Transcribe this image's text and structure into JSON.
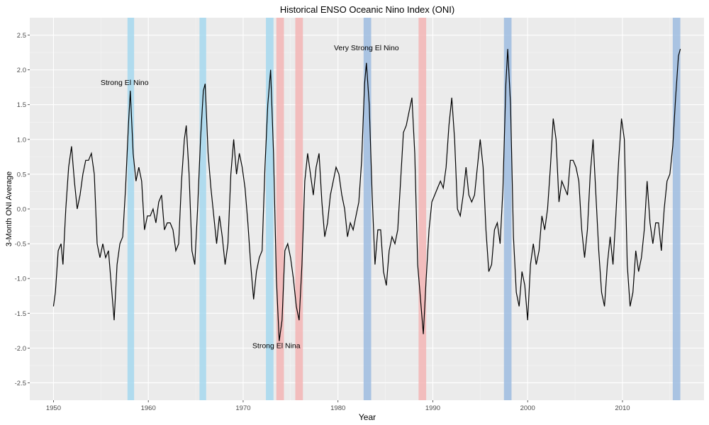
{
  "chart_data": {
    "type": "line",
    "title": "Historical ENSO Oceanic Nino Index (ONI)",
    "xlabel": "Year",
    "ylabel": "3-Month ONI Average",
    "xlim": [
      1947.5,
      2018.6
    ],
    "ylim": [
      -2.75,
      2.75
    ],
    "x_ticks": [
      1950,
      1960,
      1970,
      1980,
      1990,
      2000,
      2010
    ],
    "y_ticks": [
      2.5,
      2.0,
      1.5,
      1.0,
      0.5,
      0.0,
      -0.5,
      -1.0,
      -1.5,
      -2.0,
      -2.5
    ],
    "y_tick_labels": [
      "2.5",
      "2.0",
      "1.5",
      "1.0",
      "0.5",
      "0.0",
      "-0.5",
      "-1.0",
      "-1.5",
      "-2.0",
      "-2.5"
    ],
    "grid": true,
    "background": "#ebebeb",
    "line_color": "#000000",
    "bands": [
      {
        "x0": 1957.8,
        "x1": 1958.5,
        "color": "#a6d8ee"
      },
      {
        "x0": 1965.4,
        "x1": 1966.1,
        "color": "#a6d8ee"
      },
      {
        "x0": 1972.4,
        "x1": 1973.2,
        "color": "#a6d8ee"
      },
      {
        "x0": 1973.5,
        "x1": 1974.3,
        "color": "#f3b5b5"
      },
      {
        "x0": 1975.5,
        "x1": 1976.3,
        "color": "#f3b5b5"
      },
      {
        "x0": 1982.7,
        "x1": 1983.5,
        "color": "#9dbce0"
      },
      {
        "x0": 1988.5,
        "x1": 1989.3,
        "color": "#f3b5b5"
      },
      {
        "x0": 1997.5,
        "x1": 1998.3,
        "color": "#9dbce0"
      },
      {
        "x0": 2015.3,
        "x1": 2016.1,
        "color": "#9dbce0"
      }
    ],
    "annotations": [
      {
        "text": "Strong El Nino",
        "x": 1957.5,
        "y": 1.78
      },
      {
        "text": "Strong El Nina",
        "x": 1973.5,
        "y": -2.0
      },
      {
        "text": "Very Strong El Nino",
        "x": 1983.0,
        "y": 2.28
      }
    ],
    "points": [
      [
        1950.0,
        -1.4
      ],
      [
        1950.2,
        -1.2
      ],
      [
        1950.5,
        -0.6
      ],
      [
        1950.8,
        -0.5
      ],
      [
        1951.0,
        -0.8
      ],
      [
        1951.3,
        0.0
      ],
      [
        1951.6,
        0.6
      ],
      [
        1951.9,
        0.9
      ],
      [
        1952.2,
        0.4
      ],
      [
        1952.5,
        0.0
      ],
      [
        1952.8,
        0.2
      ],
      [
        1953.1,
        0.5
      ],
      [
        1953.4,
        0.7
      ],
      [
        1953.7,
        0.7
      ],
      [
        1954.0,
        0.8
      ],
      [
        1954.3,
        0.5
      ],
      [
        1954.6,
        -0.5
      ],
      [
        1954.9,
        -0.7
      ],
      [
        1955.2,
        -0.5
      ],
      [
        1955.5,
        -0.7
      ],
      [
        1955.8,
        -0.6
      ],
      [
        1956.1,
        -1.1
      ],
      [
        1956.4,
        -1.6
      ],
      [
        1956.7,
        -0.8
      ],
      [
        1957.0,
        -0.5
      ],
      [
        1957.3,
        -0.4
      ],
      [
        1957.6,
        0.3
      ],
      [
        1957.9,
        1.2
      ],
      [
        1958.1,
        1.7
      ],
      [
        1958.4,
        0.8
      ],
      [
        1958.7,
        0.4
      ],
      [
        1959.0,
        0.6
      ],
      [
        1959.3,
        0.4
      ],
      [
        1959.6,
        -0.3
      ],
      [
        1959.9,
        -0.1
      ],
      [
        1960.2,
        -0.1
      ],
      [
        1960.5,
        0.0
      ],
      [
        1960.8,
        -0.2
      ],
      [
        1961.1,
        0.1
      ],
      [
        1961.4,
        0.2
      ],
      [
        1961.7,
        -0.3
      ],
      [
        1962.0,
        -0.2
      ],
      [
        1962.3,
        -0.2
      ],
      [
        1962.6,
        -0.3
      ],
      [
        1962.9,
        -0.6
      ],
      [
        1963.2,
        -0.5
      ],
      [
        1963.5,
        0.4
      ],
      [
        1963.8,
        1.0
      ],
      [
        1964.0,
        1.2
      ],
      [
        1964.3,
        0.5
      ],
      [
        1964.6,
        -0.6
      ],
      [
        1964.9,
        -0.8
      ],
      [
        1965.2,
        0.0
      ],
      [
        1965.5,
        1.0
      ],
      [
        1965.8,
        1.7
      ],
      [
        1966.0,
        1.8
      ],
      [
        1966.3,
        0.8
      ],
      [
        1966.6,
        0.3
      ],
      [
        1966.9,
        -0.1
      ],
      [
        1967.2,
        -0.5
      ],
      [
        1967.5,
        -0.1
      ],
      [
        1967.8,
        -0.4
      ],
      [
        1968.1,
        -0.8
      ],
      [
        1968.4,
        -0.5
      ],
      [
        1968.7,
        0.5
      ],
      [
        1969.0,
        1.0
      ],
      [
        1969.3,
        0.5
      ],
      [
        1969.6,
        0.8
      ],
      [
        1969.9,
        0.6
      ],
      [
        1970.2,
        0.3
      ],
      [
        1970.5,
        -0.2
      ],
      [
        1970.8,
        -0.8
      ],
      [
        1971.1,
        -1.3
      ],
      [
        1971.4,
        -0.9
      ],
      [
        1971.7,
        -0.7
      ],
      [
        1972.0,
        -0.6
      ],
      [
        1972.3,
        0.6
      ],
      [
        1972.6,
        1.5
      ],
      [
        1972.9,
        2.0
      ],
      [
        1973.2,
        0.8
      ],
      [
        1973.5,
        -1.0
      ],
      [
        1973.8,
        -1.9
      ],
      [
        1974.1,
        -1.6
      ],
      [
        1974.4,
        -0.6
      ],
      [
        1974.7,
        -0.5
      ],
      [
        1975.0,
        -0.7
      ],
      [
        1975.3,
        -1.0
      ],
      [
        1975.6,
        -1.4
      ],
      [
        1975.9,
        -1.6
      ],
      [
        1976.2,
        -0.8
      ],
      [
        1976.5,
        0.4
      ],
      [
        1976.8,
        0.8
      ],
      [
        1977.1,
        0.5
      ],
      [
        1977.4,
        0.2
      ],
      [
        1977.7,
        0.6
      ],
      [
        1978.0,
        0.8
      ],
      [
        1978.3,
        0.1
      ],
      [
        1978.6,
        -0.4
      ],
      [
        1978.9,
        -0.2
      ],
      [
        1979.2,
        0.2
      ],
      [
        1979.5,
        0.4
      ],
      [
        1979.8,
        0.6
      ],
      [
        1980.1,
        0.5
      ],
      [
        1980.4,
        0.2
      ],
      [
        1980.7,
        0.0
      ],
      [
        1981.0,
        -0.4
      ],
      [
        1981.3,
        -0.2
      ],
      [
        1981.6,
        -0.3
      ],
      [
        1981.9,
        -0.1
      ],
      [
        1982.2,
        0.1
      ],
      [
        1982.5,
        0.7
      ],
      [
        1982.8,
        1.8
      ],
      [
        1983.0,
        2.1
      ],
      [
        1983.3,
        1.5
      ],
      [
        1983.6,
        0.2
      ],
      [
        1983.9,
        -0.8
      ],
      [
        1984.2,
        -0.3
      ],
      [
        1984.5,
        -0.3
      ],
      [
        1984.8,
        -0.9
      ],
      [
        1985.1,
        -1.1
      ],
      [
        1985.4,
        -0.6
      ],
      [
        1985.7,
        -0.4
      ],
      [
        1986.0,
        -0.5
      ],
      [
        1986.3,
        -0.3
      ],
      [
        1986.6,
        0.4
      ],
      [
        1986.9,
        1.1
      ],
      [
        1987.2,
        1.2
      ],
      [
        1987.5,
        1.4
      ],
      [
        1987.8,
        1.6
      ],
      [
        1988.1,
        0.8
      ],
      [
        1988.4,
        -0.8
      ],
      [
        1988.7,
        -1.3
      ],
      [
        1989.0,
        -1.8
      ],
      [
        1989.3,
        -1.0
      ],
      [
        1989.6,
        -0.3
      ],
      [
        1989.9,
        0.1
      ],
      [
        1990.2,
        0.2
      ],
      [
        1990.5,
        0.3
      ],
      [
        1990.8,
        0.4
      ],
      [
        1991.1,
        0.3
      ],
      [
        1991.4,
        0.6
      ],
      [
        1991.7,
        1.2
      ],
      [
        1992.0,
        1.6
      ],
      [
        1992.3,
        1.0
      ],
      [
        1992.6,
        0.0
      ],
      [
        1992.9,
        -0.1
      ],
      [
        1993.2,
        0.2
      ],
      [
        1993.5,
        0.6
      ],
      [
        1993.8,
        0.2
      ],
      [
        1994.1,
        0.1
      ],
      [
        1994.4,
        0.2
      ],
      [
        1994.7,
        0.6
      ],
      [
        1995.0,
        1.0
      ],
      [
        1995.3,
        0.6
      ],
      [
        1995.6,
        -0.3
      ],
      [
        1995.9,
        -0.9
      ],
      [
        1996.2,
        -0.8
      ],
      [
        1996.5,
        -0.3
      ],
      [
        1996.8,
        -0.2
      ],
      [
        1997.1,
        -0.5
      ],
      [
        1997.4,
        0.3
      ],
      [
        1997.7,
        1.8
      ],
      [
        1997.9,
        2.3
      ],
      [
        1998.2,
        1.5
      ],
      [
        1998.5,
        -0.4
      ],
      [
        1998.8,
        -1.2
      ],
      [
        1999.1,
        -1.4
      ],
      [
        1999.4,
        -0.9
      ],
      [
        1999.7,
        -1.1
      ],
      [
        2000.0,
        -1.6
      ],
      [
        2000.3,
        -0.8
      ],
      [
        2000.6,
        -0.5
      ],
      [
        2000.9,
        -0.8
      ],
      [
        2001.2,
        -0.6
      ],
      [
        2001.5,
        -0.1
      ],
      [
        2001.8,
        -0.3
      ],
      [
        2002.1,
        0.0
      ],
      [
        2002.4,
        0.6
      ],
      [
        2002.7,
        1.3
      ],
      [
        2003.0,
        1.0
      ],
      [
        2003.3,
        0.1
      ],
      [
        2003.6,
        0.4
      ],
      [
        2003.9,
        0.3
      ],
      [
        2004.2,
        0.2
      ],
      [
        2004.5,
        0.7
      ],
      [
        2004.8,
        0.7
      ],
      [
        2005.1,
        0.6
      ],
      [
        2005.4,
        0.4
      ],
      [
        2005.7,
        -0.3
      ],
      [
        2006.0,
        -0.7
      ],
      [
        2006.3,
        -0.3
      ],
      [
        2006.6,
        0.5
      ],
      [
        2006.9,
        1.0
      ],
      [
        2007.2,
        0.2
      ],
      [
        2007.5,
        -0.6
      ],
      [
        2007.8,
        -1.2
      ],
      [
        2008.1,
        -1.4
      ],
      [
        2008.4,
        -0.8
      ],
      [
        2008.7,
        -0.4
      ],
      [
        2009.0,
        -0.8
      ],
      [
        2009.3,
        -0.1
      ],
      [
        2009.6,
        0.7
      ],
      [
        2009.9,
        1.3
      ],
      [
        2010.2,
        1.0
      ],
      [
        2010.5,
        -0.8
      ],
      [
        2010.8,
        -1.4
      ],
      [
        2011.1,
        -1.2
      ],
      [
        2011.4,
        -0.6
      ],
      [
        2011.7,
        -0.9
      ],
      [
        2012.0,
        -0.7
      ],
      [
        2012.3,
        -0.3
      ],
      [
        2012.6,
        0.4
      ],
      [
        2012.9,
        -0.2
      ],
      [
        2013.2,
        -0.5
      ],
      [
        2013.5,
        -0.2
      ],
      [
        2013.8,
        -0.2
      ],
      [
        2014.1,
        -0.6
      ],
      [
        2014.4,
        0.0
      ],
      [
        2014.7,
        0.4
      ],
      [
        2015.0,
        0.5
      ],
      [
        2015.3,
        0.9
      ],
      [
        2015.6,
        1.6
      ],
      [
        2015.9,
        2.2
      ],
      [
        2016.1,
        2.3
      ]
    ]
  }
}
